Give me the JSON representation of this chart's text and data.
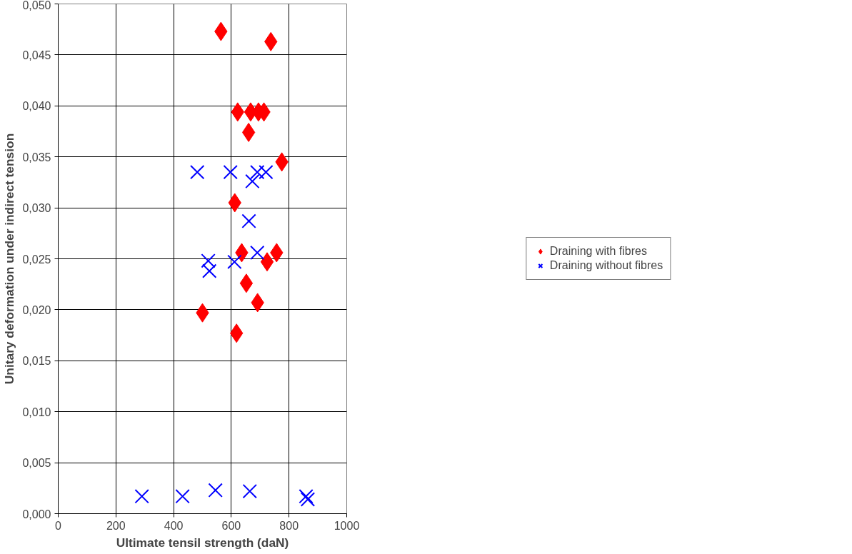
{
  "chart_data": {
    "type": "scatter",
    "xlabel": "Ultimate tensil strength (daN)",
    "ylabel": "Unitary deformation under indirect tension",
    "xlim": [
      0,
      1000
    ],
    "xticks": [
      0,
      200,
      400,
      600,
      800,
      1000
    ],
    "ylim": [
      0,
      0.05
    ],
    "yticks": [
      {
        "value": 0,
        "label": "0,000"
      },
      {
        "value": 0.005,
        "label": "0,005"
      },
      {
        "value": 0.01,
        "label": "0,010"
      },
      {
        "value": 0.015,
        "label": "0,015"
      },
      {
        "value": 0.02,
        "label": "0,020"
      },
      {
        "value": 0.025,
        "label": "0,025"
      },
      {
        "value": 0.03,
        "label": "0,030"
      },
      {
        "value": 0.035,
        "label": "0,035"
      },
      {
        "value": 0.04,
        "label": "0,040"
      },
      {
        "value": 0.045,
        "label": "0,045"
      },
      {
        "value": 0.05,
        "label": "0,050"
      }
    ],
    "grid": true,
    "legend": "right",
    "series": [
      {
        "name": "Draining with fibres",
        "color": "#ff0000",
        "marker": "diamond",
        "x": [
          564,
          737,
          622,
          667,
          694,
          713,
          660,
          775,
          612,
          636,
          757,
          724,
          652,
          691,
          500,
          618
        ],
        "values": [
          0.0473,
          0.0463,
          0.0394,
          0.0394,
          0.0394,
          0.0394,
          0.0374,
          0.0345,
          0.0305,
          0.0256,
          0.0256,
          0.0247,
          0.0226,
          0.0207,
          0.0197,
          0.0177
        ]
      },
      {
        "name": "Draining without fibres",
        "color": "#0000ff",
        "marker": "cross",
        "x": [
          482,
          597,
          690,
          720,
          673,
          661,
          690,
          520,
          524,
          611,
          290,
          431,
          545,
          664,
          859,
          865
        ],
        "values": [
          0.0335,
          0.0335,
          0.0335,
          0.0335,
          0.0326,
          0.0287,
          0.0256,
          0.0248,
          0.0238,
          0.0247,
          0.0017,
          0.0017,
          0.0023,
          0.0022,
          0.0017,
          0.0014
        ]
      }
    ]
  }
}
